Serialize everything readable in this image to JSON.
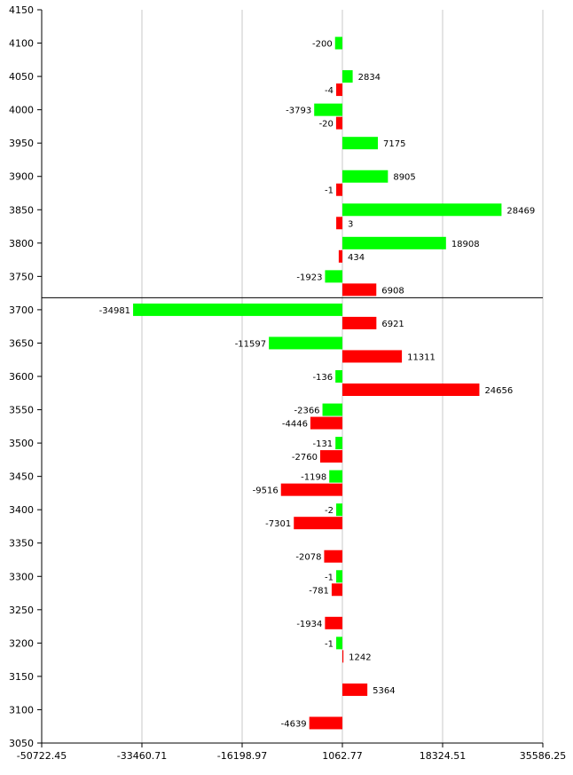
{
  "chart_data": {
    "type": "bar",
    "orientation": "horizontal",
    "title": "",
    "xlabel": "",
    "ylabel": "",
    "grid": true,
    "legend": "none",
    "xlim": [
      -50722.45,
      35586.25
    ],
    "xticks": [
      "-50722.45",
      "-33460.71",
      "-16198.97",
      "1062.77",
      "18324.51",
      "35586.25"
    ],
    "xtick_values": [
      -50722.45,
      -33460.71,
      -16198.97,
      1062.77,
      18324.51,
      35586.25
    ],
    "ylim": [
      3050,
      4150
    ],
    "yticks": [
      3050,
      3100,
      3150,
      3200,
      3250,
      3300,
      3350,
      3400,
      3450,
      3500,
      3550,
      3600,
      3650,
      3700,
      3750,
      3800,
      3850,
      3900,
      3950,
      4000,
      4050,
      4100,
      4150
    ],
    "baseline": 1062.77,
    "reference_line": 3718,
    "series": [
      {
        "color": "#00ff00",
        "points": [
          {
            "y": 4100,
            "value": -200
          },
          {
            "y": 4050,
            "value": 2834
          },
          {
            "y": 4000,
            "value": -3793
          },
          {
            "y": 3950,
            "value": 7175
          },
          {
            "y": 3900,
            "value": 8905
          },
          {
            "y": 3850,
            "value": 28469
          },
          {
            "y": 3800,
            "value": 18908
          },
          {
            "y": 3750,
            "value": -1923
          },
          {
            "y": 3700,
            "value": -34981
          },
          {
            "y": 3650,
            "value": -11597
          },
          {
            "y": 3600,
            "value": -136
          },
          {
            "y": 3550,
            "value": -2366
          },
          {
            "y": 3500,
            "value": -131
          },
          {
            "y": 3450,
            "value": -1198
          },
          {
            "y": 3400,
            "value": -2
          },
          {
            "y": 3300,
            "value": -1
          },
          {
            "y": 3200,
            "value": -1
          }
        ]
      },
      {
        "color": "#ff0000",
        "points": [
          {
            "y": 4050,
            "value": -4
          },
          {
            "y": 4000,
            "value": -20
          },
          {
            "y": 3900,
            "value": -1
          },
          {
            "y": 3850,
            "value": 3
          },
          {
            "y": 3800,
            "value": 434
          },
          {
            "y": 3750,
            "value": 6908
          },
          {
            "y": 3700,
            "value": 6921
          },
          {
            "y": 3650,
            "value": 11311
          },
          {
            "y": 3600,
            "value": 24656
          },
          {
            "y": 3550,
            "value": -4446
          },
          {
            "y": 3500,
            "value": -2760
          },
          {
            "y": 3450,
            "value": -9516
          },
          {
            "y": 3400,
            "value": -7301
          },
          {
            "y": 3350,
            "value": -2078
          },
          {
            "y": 3300,
            "value": -781
          },
          {
            "y": 3250,
            "value": -1934
          },
          {
            "y": 3200,
            "value": 1242
          },
          {
            "y": 3150,
            "value": 5364
          },
          {
            "y": 3100,
            "value": -4639
          }
        ]
      }
    ]
  }
}
